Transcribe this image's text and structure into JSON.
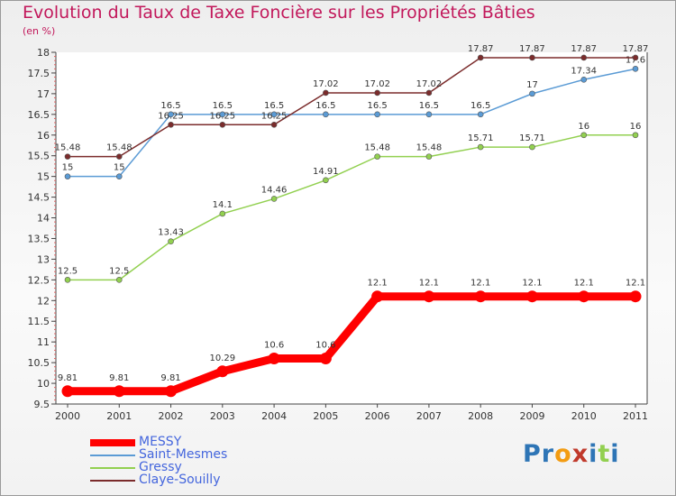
{
  "chart_data": {
    "type": "line",
    "title": "Evolution du Taux de Taxe Foncière sur les Propriétés Bâties",
    "ylabel": "(en %)",
    "xlabel": "",
    "x": [
      "2000",
      "2001",
      "2002",
      "2003",
      "2004",
      "2005",
      "2006",
      "2007",
      "2008",
      "2009",
      "2010",
      "2011"
    ],
    "ylim": [
      9.5,
      18
    ],
    "yticks": [
      "9.5",
      "10",
      "10.5",
      "11",
      "11.5",
      "12",
      "12.5",
      "13",
      "13.5",
      "14",
      "14.5",
      "15",
      "15.5",
      "16",
      "16.5",
      "17",
      "17.5",
      "18"
    ],
    "grid": false,
    "legend_position": "bottom-left",
    "series": [
      {
        "name": "MESSY",
        "color": "#ff0000",
        "values": [
          9.81,
          9.81,
          9.81,
          10.29,
          10.6,
          10.6,
          12.1,
          12.1,
          12.1,
          12.1,
          12.1,
          12.1
        ],
        "labels": [
          "9.81",
          "9.81",
          "9.81",
          "10.29",
          "10.6",
          "10.6",
          "12.1",
          "12.1",
          "12.1",
          "12.1",
          "12.1",
          "12.1"
        ]
      },
      {
        "name": "Saint-Mesmes",
        "color": "#5b9bd5",
        "values": [
          15,
          15,
          16.5,
          16.5,
          16.5,
          16.5,
          16.5,
          16.5,
          16.5,
          17,
          17.34,
          17.6
        ],
        "labels": [
          "15",
          "15",
          "16.5",
          "16.5",
          "16.5",
          "16.5",
          "16.5",
          "16.5",
          "16.5",
          "17",
          "17.34",
          "17.6"
        ]
      },
      {
        "name": "Gressy",
        "color": "#92d050",
        "values": [
          12.5,
          12.5,
          13.43,
          14.1,
          14.46,
          14.91,
          15.48,
          15.48,
          15.71,
          15.71,
          16,
          16
        ],
        "labels": [
          "12.5",
          "12.5",
          "13.43",
          "14.1",
          "14.46",
          "14.91",
          "15.48",
          "15.48",
          "15.71",
          "15.71",
          "16",
          "16"
        ]
      },
      {
        "name": "Claye-Souilly",
        "color": "#7b2c2c",
        "values": [
          15.48,
          15.48,
          16.25,
          16.25,
          16.25,
          17.02,
          17.02,
          17.02,
          17.87,
          17.87,
          17.87,
          17.87
        ],
        "labels": [
          "15.48",
          "15.48",
          "16.25",
          "16.25",
          "16.25",
          "17.02",
          "17.02",
          "17.02",
          "17.87",
          "17.87",
          "17.87",
          "17.87"
        ]
      }
    ]
  },
  "brand": {
    "letters": [
      "P",
      "r",
      "o",
      "x",
      "i",
      "t",
      "i"
    ],
    "colors": [
      "#2e75b6",
      "#2e75b6",
      "#f39c12",
      "#c0392b",
      "#2e75b6",
      "#92d050",
      "#2e75b6"
    ]
  }
}
